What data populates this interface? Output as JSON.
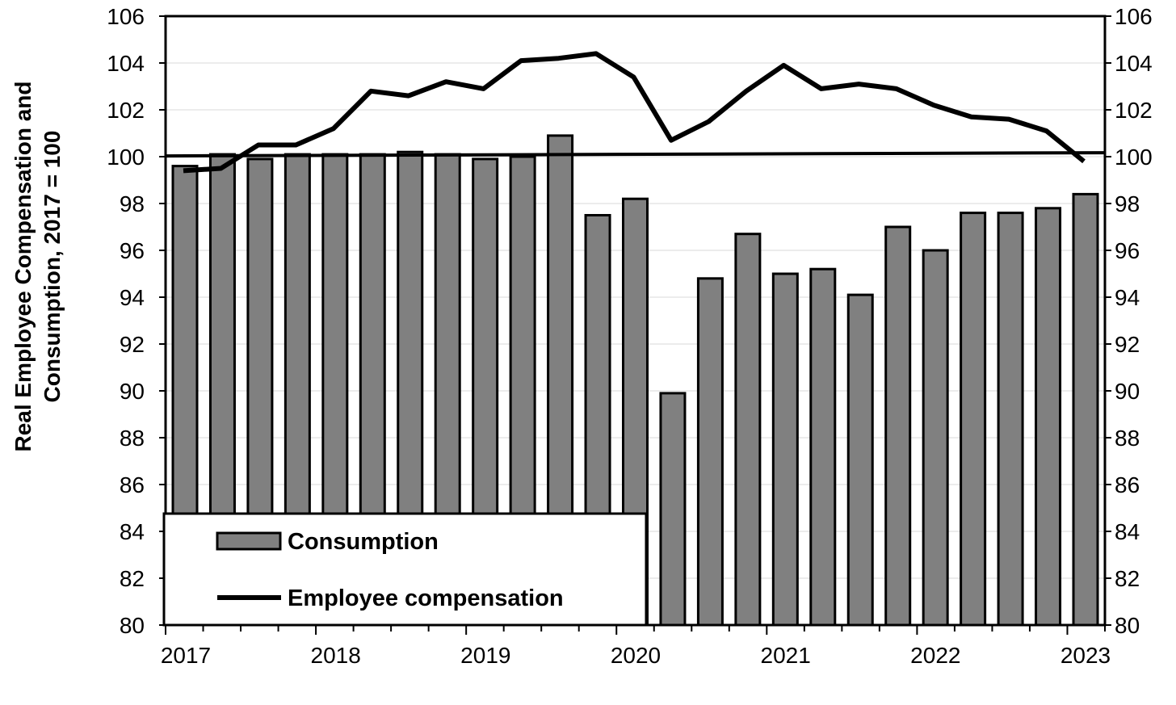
{
  "chart_data": {
    "type": "bar+line",
    "ylabel": [
      "Real Employee Compensation and",
      "Consumption, 2017 = 100"
    ],
    "ylim": [
      80,
      106
    ],
    "yticks": [
      80,
      82,
      84,
      86,
      88,
      90,
      92,
      94,
      96,
      98,
      100,
      102,
      104,
      106
    ],
    "secondary_yaxis": true,
    "grid": true,
    "x_tick_labels": [
      "2017",
      "2018",
      "2019",
      "2020",
      "2021",
      "2022",
      "2023"
    ],
    "reference_line": 100.1,
    "legend_position": "bottom-left",
    "series": [
      {
        "name": "Consumption",
        "type": "bar",
        "color": "#808080",
        "values": [
          99.6,
          100.1,
          99.9,
          100.1,
          100.1,
          100.1,
          100.2,
          100.1,
          99.9,
          100.0,
          100.9,
          97.5,
          98.2,
          89.9,
          94.8,
          96.7,
          95.0,
          95.2,
          94.1,
          97.0,
          96.0,
          97.6,
          97.6,
          97.8,
          98.4
        ]
      },
      {
        "name": "Employee compensation",
        "type": "line",
        "color": "#000000",
        "values": [
          99.4,
          99.5,
          100.5,
          100.5,
          101.2,
          102.8,
          102.6,
          103.2,
          102.9,
          104.1,
          104.2,
          104.4,
          103.4,
          100.7,
          101.5,
          102.8,
          103.9,
          102.9,
          103.1,
          102.9,
          102.2,
          101.7,
          101.6,
          101.1,
          99.8
        ]
      }
    ]
  }
}
